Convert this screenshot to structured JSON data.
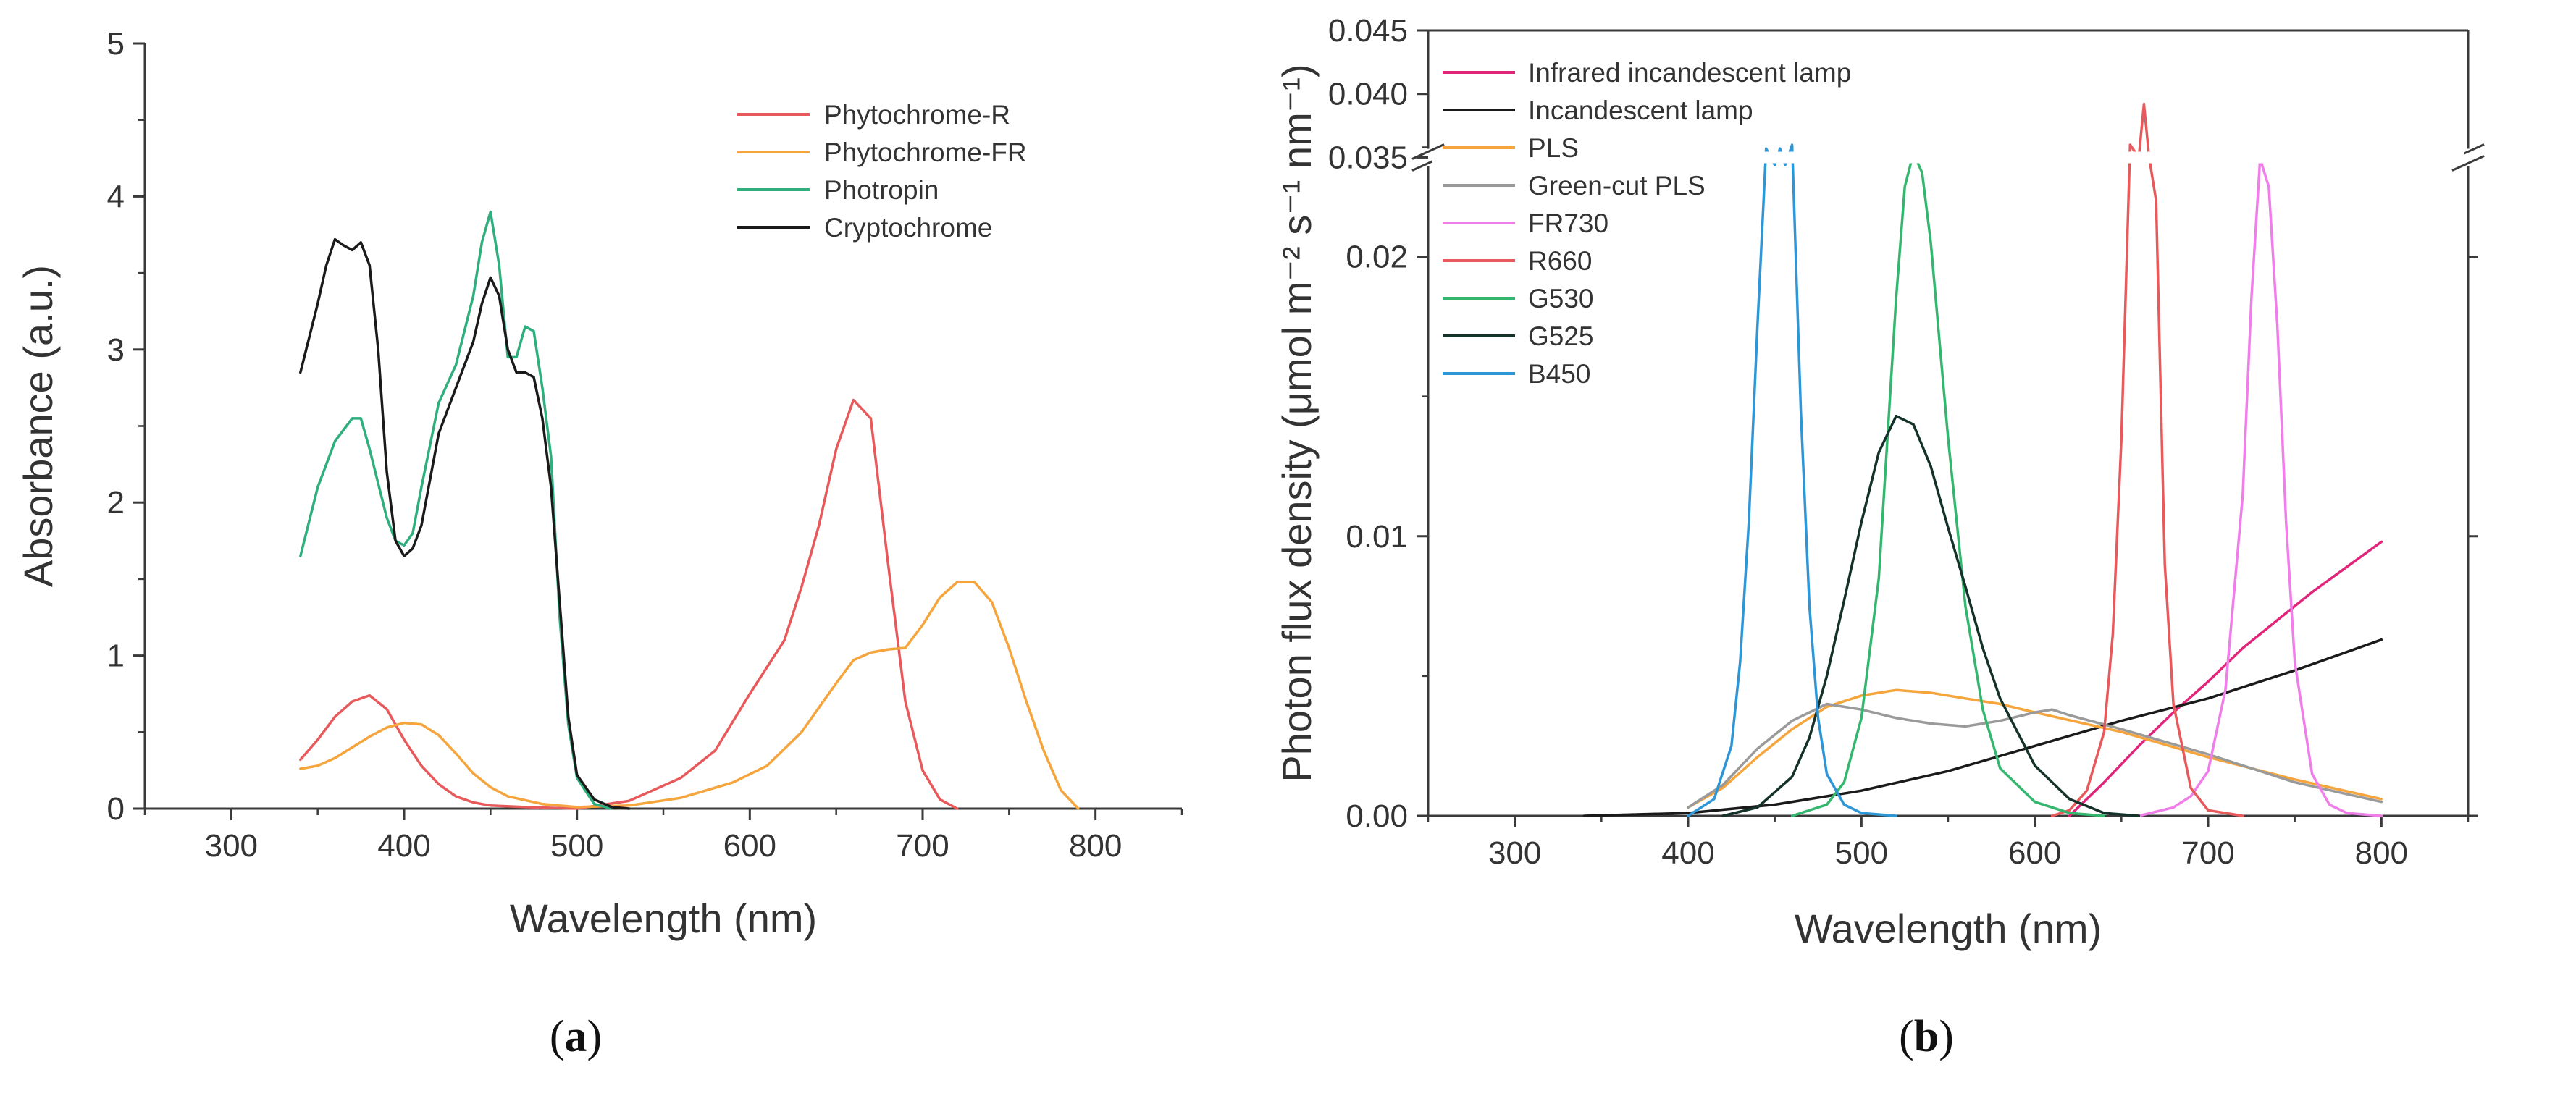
{
  "chart_data": [
    {
      "type": "line",
      "panel": "a",
      "panel_label": "(a)",
      "xlabel": "Wavelength (nm)",
      "ylabel": "Absorbance (a.u.)",
      "xlim": [
        250,
        850
      ],
      "ylim": [
        0,
        5
      ],
      "xticks": [
        "300",
        "400",
        "500",
        "600",
        "700",
        "800"
      ],
      "yticks": [
        "0",
        "1",
        "2",
        "3",
        "4",
        "5"
      ],
      "legend_position": "top-right",
      "series": [
        {
          "name": "Phytochrome-R",
          "color": "#e8595b",
          "x": [
            340,
            350,
            360,
            370,
            380,
            390,
            400,
            410,
            420,
            430,
            440,
            450,
            470,
            500,
            530,
            560,
            580,
            600,
            620,
            630,
            640,
            650,
            660,
            670,
            680,
            690,
            700,
            710,
            720
          ],
          "y": [
            0.32,
            0.45,
            0.6,
            0.7,
            0.74,
            0.65,
            0.45,
            0.28,
            0.16,
            0.08,
            0.04,
            0.02,
            0.01,
            0.0,
            0.05,
            0.2,
            0.38,
            0.75,
            1.1,
            1.45,
            1.85,
            2.35,
            2.67,
            2.55,
            1.6,
            0.7,
            0.25,
            0.06,
            0.0
          ]
        },
        {
          "name": "Phytochrome-FR",
          "color": "#f5a53c",
          "x": [
            340,
            350,
            360,
            370,
            380,
            390,
            400,
            410,
            420,
            430,
            440,
            450,
            460,
            480,
            500,
            530,
            560,
            590,
            610,
            630,
            650,
            660,
            670,
            680,
            690,
            700,
            710,
            720,
            730,
            740,
            750,
            760,
            770,
            780,
            790
          ],
          "y": [
            0.26,
            0.28,
            0.33,
            0.4,
            0.47,
            0.53,
            0.56,
            0.55,
            0.48,
            0.36,
            0.23,
            0.14,
            0.08,
            0.03,
            0.01,
            0.02,
            0.07,
            0.17,
            0.28,
            0.5,
            0.82,
            0.97,
            1.02,
            1.04,
            1.05,
            1.2,
            1.38,
            1.48,
            1.48,
            1.35,
            1.05,
            0.7,
            0.38,
            0.12,
            0.0
          ]
        },
        {
          "name": "Photropin",
          "color": "#2fae7e",
          "x": [
            340,
            350,
            360,
            370,
            375,
            380,
            390,
            395,
            400,
            405,
            410,
            420,
            430,
            440,
            445,
            450,
            455,
            460,
            465,
            470,
            475,
            480,
            485,
            490,
            495,
            500,
            510,
            520
          ],
          "y": [
            1.65,
            2.1,
            2.4,
            2.55,
            2.55,
            2.35,
            1.9,
            1.75,
            1.72,
            1.8,
            2.1,
            2.65,
            2.9,
            3.35,
            3.7,
            3.9,
            3.55,
            2.95,
            2.95,
            3.15,
            3.12,
            2.75,
            2.3,
            1.25,
            0.55,
            0.2,
            0.03,
            0.0
          ]
        },
        {
          "name": "Cryptochrome",
          "color": "#1a1a1a",
          "x": [
            340,
            350,
            355,
            360,
            365,
            370,
            375,
            380,
            385,
            390,
            395,
            400,
            405,
            410,
            420,
            430,
            440,
            445,
            450,
            455,
            460,
            465,
            470,
            475,
            480,
            485,
            490,
            495,
            500,
            510,
            520,
            530
          ],
          "y": [
            2.85,
            3.3,
            3.55,
            3.72,
            3.68,
            3.65,
            3.7,
            3.55,
            3.0,
            2.2,
            1.75,
            1.65,
            1.7,
            1.85,
            2.45,
            2.75,
            3.05,
            3.3,
            3.47,
            3.35,
            3.0,
            2.85,
            2.85,
            2.82,
            2.55,
            2.1,
            1.35,
            0.6,
            0.22,
            0.06,
            0.01,
            0.0
          ]
        }
      ]
    },
    {
      "type": "line",
      "panel": "b",
      "panel_label": "(b)",
      "xlabel": "Wavelength (nm)",
      "ylabel": "Photon flux density (μmol m⁻² s⁻¹ nm⁻¹)",
      "xlim": [
        250,
        850
      ],
      "ylim_lower": [
        0,
        0.024
      ],
      "ylim_upper": [
        0.034,
        0.045
      ],
      "axis_break": true,
      "xticks": [
        "300",
        "400",
        "500",
        "600",
        "700",
        "800"
      ],
      "yticks_lower": [
        "0.00",
        "0.01",
        "0.02"
      ],
      "yticks_upper": [
        "0.035",
        "0.040",
        "0.045"
      ],
      "legend_position": "top-left",
      "series": [
        {
          "name": "Infrared incandescent lamp",
          "color": "#e0257a",
          "x": [
            620,
            640,
            660,
            680,
            700,
            720,
            740,
            760,
            780,
            800
          ],
          "y": [
            0.0,
            0.0012,
            0.0025,
            0.0037,
            0.0048,
            0.006,
            0.007,
            0.008,
            0.0089,
            0.0098
          ]
        },
        {
          "name": "Incandescent lamp",
          "color": "#1a1a1a",
          "x": [
            340,
            400,
            450,
            500,
            550,
            600,
            650,
            700,
            750,
            800
          ],
          "y": [
            0.0,
            0.0001,
            0.0004,
            0.0009,
            0.0016,
            0.0025,
            0.0034,
            0.0042,
            0.0052,
            0.0063
          ]
        },
        {
          "name": "PLS",
          "color": "#f5a53c",
          "x": [
            400,
            420,
            440,
            460,
            480,
            500,
            520,
            540,
            560,
            580,
            600,
            650,
            700,
            750,
            800
          ],
          "y": [
            0.0003,
            0.001,
            0.0021,
            0.0031,
            0.0039,
            0.0043,
            0.0045,
            0.0044,
            0.0042,
            0.004,
            0.0037,
            0.003,
            0.0021,
            0.0013,
            0.0006
          ]
        },
        {
          "name": "Green-cut PLS",
          "color": "#9a9a9a",
          "x": [
            400,
            420,
            440,
            460,
            480,
            500,
            520,
            540,
            560,
            580,
            600,
            610,
            620,
            650,
            700,
            750,
            800
          ],
          "y": [
            0.0003,
            0.0011,
            0.0024,
            0.0034,
            0.004,
            0.0038,
            0.0035,
            0.0033,
            0.0032,
            0.0034,
            0.0037,
            0.0038,
            0.0036,
            0.0031,
            0.0022,
            0.0012,
            0.0005
          ]
        },
        {
          "name": "FR730",
          "color": "#ef7ee8",
          "x": [
            660,
            680,
            690,
            700,
            710,
            720,
            725,
            730,
            735,
            740,
            745,
            750,
            760,
            770,
            780,
            800
          ],
          "y": [
            0.0,
            0.0003,
            0.0007,
            0.0016,
            0.0045,
            0.0115,
            0.0185,
            0.0235,
            0.0225,
            0.0175,
            0.0105,
            0.0055,
            0.0015,
            0.0004,
            0.0001,
            0.0
          ]
        },
        {
          "name": "R660",
          "color": "#e8595b",
          "x": [
            610,
            620,
            630,
            640,
            645,
            650,
            655,
            660,
            663,
            666,
            670,
            675,
            680,
            690,
            700,
            720
          ],
          "y": [
            0.0,
            0.0002,
            0.0009,
            0.003,
            0.0065,
            0.0135,
            0.024,
            0.035,
            0.0392,
            0.035,
            0.022,
            0.009,
            0.004,
            0.001,
            0.0002,
            0.0
          ]
        },
        {
          "name": "G530",
          "color": "#35b66f",
          "x": [
            460,
            480,
            490,
            500,
            510,
            515,
            520,
            525,
            530,
            535,
            540,
            545,
            550,
            560,
            570,
            580,
            600,
            620,
            640
          ],
          "y": [
            0.0,
            0.0004,
            0.0012,
            0.0035,
            0.0085,
            0.0135,
            0.0185,
            0.0225,
            0.0237,
            0.023,
            0.0205,
            0.017,
            0.0135,
            0.0075,
            0.0038,
            0.0017,
            0.0005,
            0.0001,
            0.0
          ]
        },
        {
          "name": "G525",
          "color": "#14322a",
          "x": [
            420,
            440,
            460,
            470,
            480,
            490,
            500,
            510,
            520,
            530,
            540,
            550,
            560,
            570,
            580,
            600,
            620,
            640,
            660
          ],
          "y": [
            0.0,
            0.0003,
            0.0014,
            0.0028,
            0.005,
            0.0077,
            0.0105,
            0.013,
            0.0143,
            0.014,
            0.0125,
            0.0103,
            0.0082,
            0.006,
            0.0042,
            0.0018,
            0.0006,
            0.0001,
            0.0
          ]
        },
        {
          "name": "B450",
          "color": "#2f96d6",
          "x": [
            400,
            415,
            425,
            430,
            435,
            440,
            445,
            450,
            453,
            456,
            460,
            465,
            470,
            475,
            480,
            490,
            500,
            520
          ],
          "y": [
            0.0,
            0.0006,
            0.0025,
            0.0055,
            0.0105,
            0.0175,
            0.0255,
            0.032,
            0.0357,
            0.032,
            0.024,
            0.0145,
            0.0075,
            0.0035,
            0.0015,
            0.0004,
            0.0001,
            0.0
          ]
        }
      ]
    }
  ]
}
